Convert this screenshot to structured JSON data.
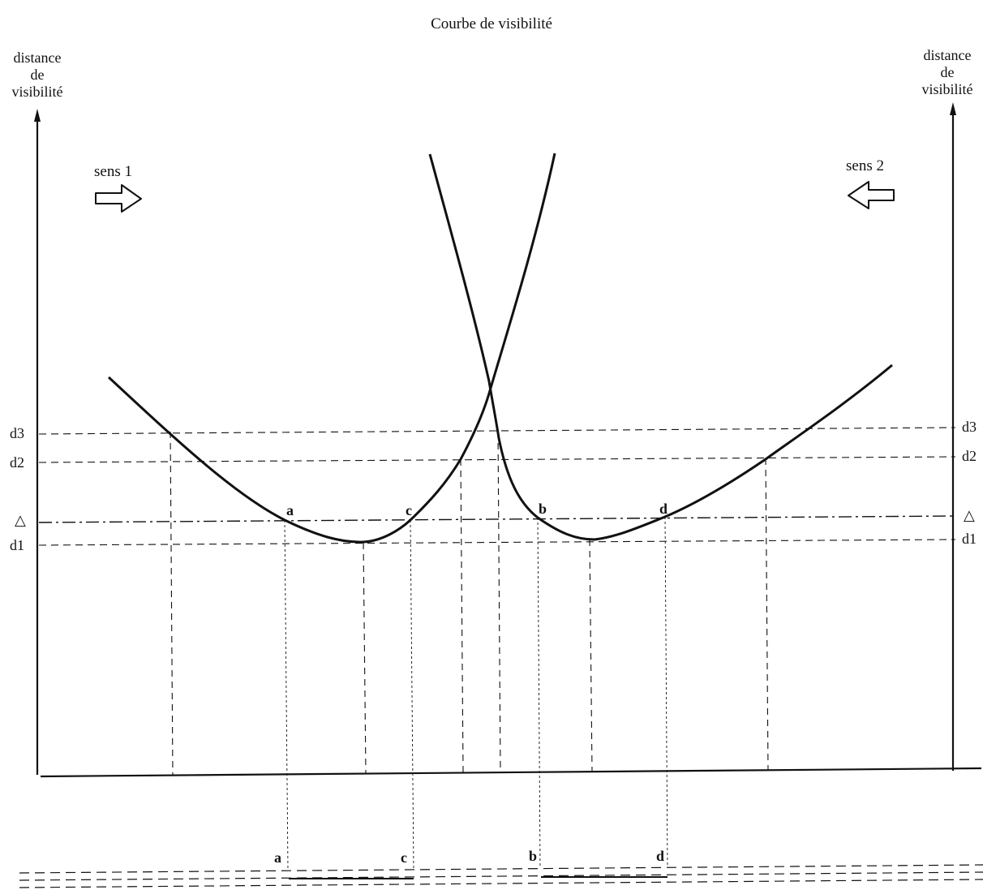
{
  "title": "Courbe de visibilité",
  "axes": {
    "left_title": [
      "distance",
      "de",
      "visibilité"
    ],
    "right_title": [
      "distance",
      "de",
      "visibilité"
    ]
  },
  "directions": {
    "dir1_label": "sens 1",
    "dir2_label": "sens 2"
  },
  "levels": {
    "d3": "d3",
    "d2": "d2",
    "delta": "△",
    "d1": "d1"
  },
  "points": {
    "a": "a",
    "b": "b",
    "c": "c",
    "d": "d"
  },
  "colors": {
    "ink": "#111111",
    "paper": "#ffffff"
  }
}
